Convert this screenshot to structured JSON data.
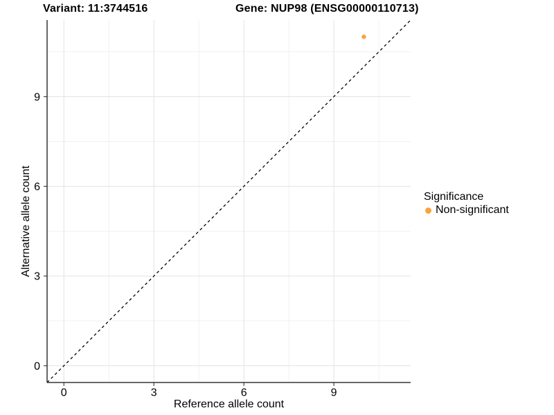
{
  "chart_data": {
    "type": "scatter",
    "titles": {
      "variant": "Variant: 11:3744516",
      "gene": "Gene: NUP98 (ENSG00000110713)"
    },
    "xlabel": "Reference allele count",
    "ylabel": "Alternative allele count",
    "xlim": [
      -0.56,
      11.56
    ],
    "ylim": [
      -0.56,
      11.56
    ],
    "x_ticks": [
      0,
      3,
      6,
      9
    ],
    "y_ticks": [
      0,
      3,
      6,
      9
    ],
    "minor_gridlines": [
      1.5,
      4.5,
      7.5,
      10.5
    ],
    "grid": true,
    "points": [
      {
        "x": 10,
        "y": 11,
        "series": "Non-significant"
      }
    ],
    "identity_line": {
      "from": [
        -0.56,
        -0.56
      ],
      "to": [
        11.56,
        11.56
      ],
      "style": "dashed"
    },
    "legend": {
      "position": "right",
      "title": "Significance",
      "entries": [
        {
          "label": "Non-significant",
          "color": "#F9A43B"
        }
      ]
    },
    "colors": {
      "point": "#F9A43B",
      "grid_major": "#E3E3E3",
      "grid_minor": "#F1F1F1",
      "axis": "#333333",
      "dashed_line": "#000000",
      "text": "#000000",
      "background": "#FFFFFF"
    }
  }
}
